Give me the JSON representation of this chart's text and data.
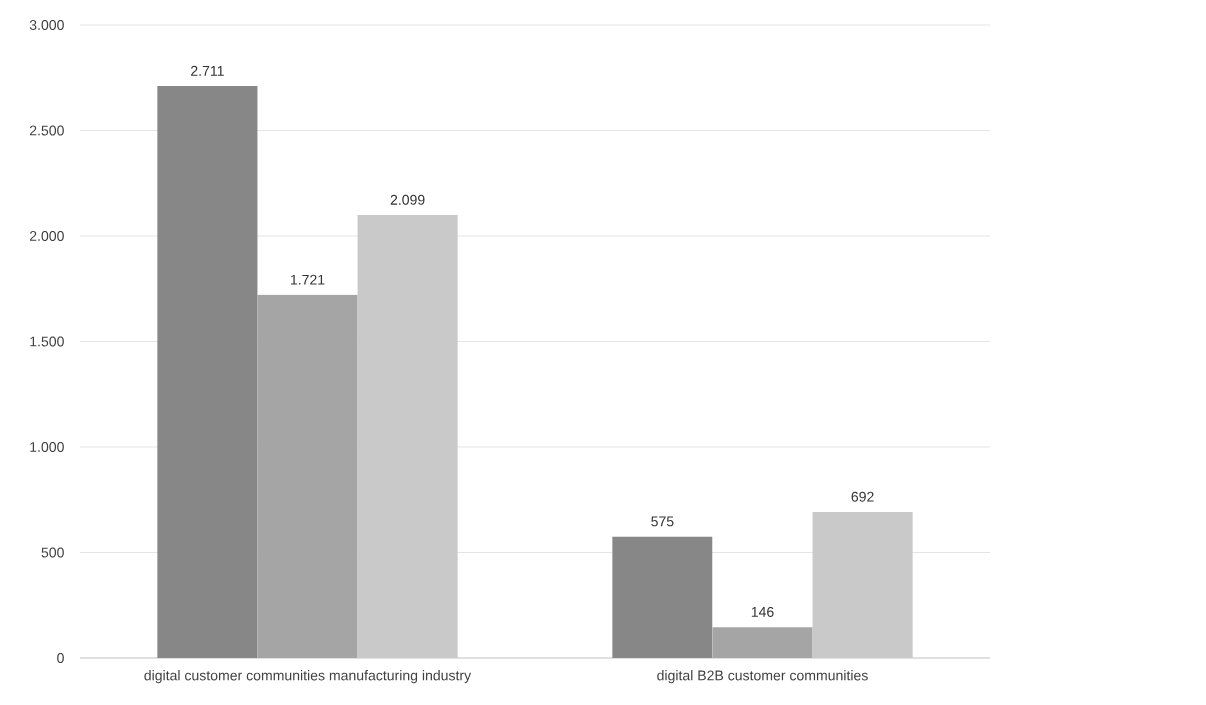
{
  "chart_data": {
    "type": "bar",
    "categories": [
      "digital customer communities manufacturing industry",
      "digital B2B customer communities"
    ],
    "series": [
      {
        "color": "#878787",
        "values": [
          2711,
          575
        ],
        "value_labels": [
          "2.711",
          "575"
        ]
      },
      {
        "color": "#a5a5a5",
        "values": [
          1721,
          146
        ],
        "value_labels": [
          "1.721",
          "146"
        ]
      },
      {
        "color": "#c9c9c9",
        "values": [
          2099,
          692
        ],
        "value_labels": [
          "2.099",
          "692"
        ]
      }
    ],
    "ylim": [
      0,
      3000
    ],
    "yticks": [
      0,
      500,
      {
        "value": 1000,
        "label": "1.000"
      },
      {
        "value": 1500,
        "label": "1.500"
      },
      {
        "value": 2000,
        "label": "2.000"
      },
      {
        "value": 2500,
        "label": "2.500"
      },
      {
        "value": 3000,
        "label": "3.000"
      }
    ],
    "grid": "y"
  }
}
